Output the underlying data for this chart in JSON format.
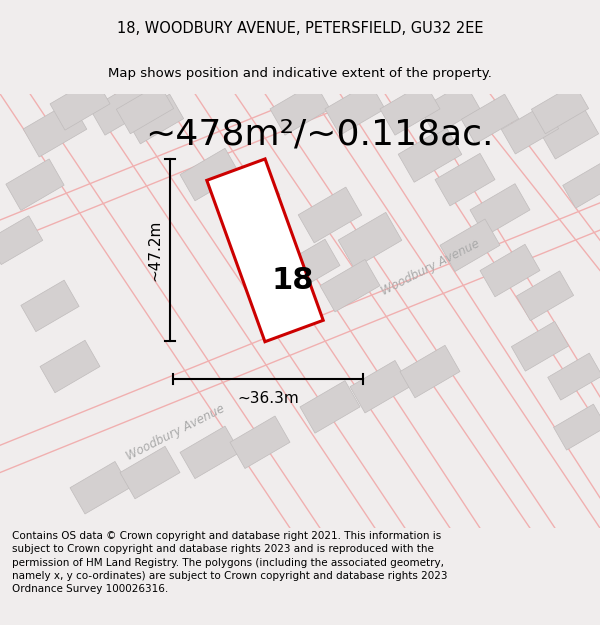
{
  "title_line1": "18, WOODBURY AVENUE, PETERSFIELD, GU32 2EE",
  "title_line2": "Map shows position and indicative extent of the property.",
  "area_label": "~478m²/~0.118ac.",
  "width_label": "~36.3m",
  "height_label": "~47.2m",
  "plot_number": "18",
  "footer_text": "Contains OS data © Crown copyright and database right 2021. This information is subject to Crown copyright and database rights 2023 and is reproduced with the permission of HM Land Registry. The polygons (including the associated geometry, namely x, y co-ordinates) are subject to Crown copyright and database rights 2023 Ordnance Survey 100026316.",
  "bg_color": "#f0eded",
  "map_bg_color": "#f5f2f2",
  "plot_color": "#cc0000",
  "plot_fill": "#ffffff",
  "neighbor_fill": "#d4d0d0",
  "road_color": "#f0b0b0",
  "line_color": "#000000",
  "woodbury_color": "#aaaaaa",
  "title_fontsize": 10.5,
  "subtitle_fontsize": 9.5,
  "area_fontsize": 26,
  "number_fontsize": 22,
  "dim_fontsize": 11,
  "footer_fontsize": 7.5
}
